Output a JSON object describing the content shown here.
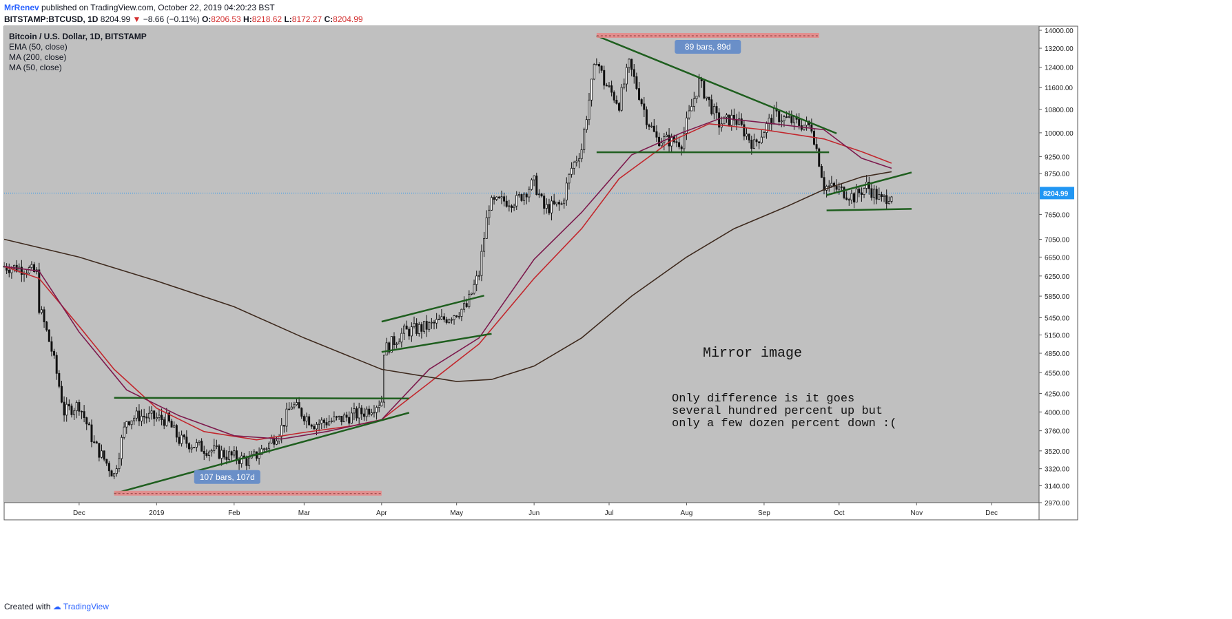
{
  "header": {
    "author": "MrRenev",
    "published": "published on TradingView.com, October 22, 2019 04:20:23 BST",
    "symbol": "BITSTAMP:BTCUSD, 1D",
    "last": "8204.99",
    "change_arrow": "▼",
    "change": "−8.66 (−0.11%)",
    "o_label": "O:",
    "o_value": "8206.53",
    "h_label": "H:",
    "h_value": "8218.62",
    "l_label": "L:",
    "l_value": "8172.27",
    "c_label": "C:",
    "c_value": "8204.99"
  },
  "legend": {
    "title": "Bitcoin / U.S. Dollar, 1D, BITSTAMP",
    "items": [
      "EMA (50, close)",
      "MA (200, close)",
      "MA (50, close)"
    ]
  },
  "footer": {
    "created_with": "Created with",
    "brand": "TradingView"
  },
  "colors": {
    "panel": "#c0c0c0",
    "ema50": "#c2272d",
    "ma200": "#3e2a1e",
    "ma50": "#7d1a4d",
    "trendline": "#1e5e1e",
    "candle": "#111111",
    "range_box": "#e58a8a",
    "range_label": "#6a8fc8",
    "price_tag": "#2196f3"
  },
  "chart_data": {
    "type": "candlestick",
    "ylim": [
      2970,
      14000
    ],
    "y_ticks": [
      14000,
      13200,
      12400,
      11600,
      10800,
      10000,
      9250,
      8750,
      7650,
      7050,
      6650,
      6250,
      5850,
      5450,
      5150,
      4850,
      4550,
      4250,
      4000,
      3760,
      3520,
      3320,
      3140,
      2970
    ],
    "y_tick_labels": [
      "14000.00",
      "13200.00",
      "12400.00",
      "11600.00",
      "10800.00",
      "10000.00",
      "9250.00",
      "8750.00",
      "7650.00",
      "7050.00",
      "6650.00",
      "6250.00",
      "5850.00",
      "5450.00",
      "5150.00",
      "4850.00",
      "4550.00",
      "4250.00",
      "4000.00",
      "3760.00",
      "3520.00",
      "3320.00",
      "3140.00",
      "2970.00"
    ],
    "x_ticks": [
      "Dec",
      "2019",
      "Feb",
      "Mar",
      "Apr",
      "May",
      "Jun",
      "Jul",
      "Aug",
      "Sep",
      "Oct",
      "Nov",
      "Dec"
    ],
    "last_price": 8204.99,
    "last_price_label": "8204.99",
    "price_path": [
      [
        "2018-11-01",
        6450
      ],
      [
        "2018-11-10",
        6400
      ],
      [
        "2018-11-14",
        6300
      ],
      [
        "2018-11-15",
        5650
      ],
      [
        "2018-11-20",
        4900
      ],
      [
        "2018-11-25",
        4000
      ],
      [
        "2018-12-01",
        4100
      ],
      [
        "2018-12-07",
        3600
      ],
      [
        "2018-12-15",
        3250
      ],
      [
        "2018-12-20",
        3900
      ],
      [
        "2018-12-25",
        3950
      ],
      [
        "2019-01-05",
        3900
      ],
      [
        "2019-01-10",
        3650
      ],
      [
        "2019-01-20",
        3550
      ],
      [
        "2019-02-01",
        3450
      ],
      [
        "2019-02-07",
        3400
      ],
      [
        "2019-02-15",
        3600
      ],
      [
        "2019-02-20",
        3800
      ],
      [
        "2019-02-24",
        4100
      ],
      [
        "2019-03-05",
        3850
      ],
      [
        "2019-03-15",
        3900
      ],
      [
        "2019-03-25",
        4000
      ],
      [
        "2019-04-01",
        4150
      ],
      [
        "2019-04-02",
        4900
      ],
      [
        "2019-04-10",
        5200
      ],
      [
        "2019-04-20",
        5300
      ],
      [
        "2019-04-25",
        5400
      ],
      [
        "2019-05-05",
        5650
      ],
      [
        "2019-05-10",
        6300
      ],
      [
        "2019-05-14",
        7900
      ],
      [
        "2019-05-20",
        8000
      ],
      [
        "2019-05-25",
        8000
      ],
      [
        "2019-06-01",
        8500
      ],
      [
        "2019-06-05",
        7800
      ],
      [
        "2019-06-12",
        7900
      ],
      [
        "2019-06-16",
        8900
      ],
      [
        "2019-06-20",
        9500
      ],
      [
        "2019-06-26",
        12800
      ],
      [
        "2019-06-29",
        11800
      ],
      [
        "2019-07-05",
        11000
      ],
      [
        "2019-07-09",
        12500
      ],
      [
        "2019-07-16",
        10500
      ],
      [
        "2019-07-20",
        9800
      ],
      [
        "2019-07-30",
        9700
      ],
      [
        "2019-08-06",
        11800
      ],
      [
        "2019-08-14",
        10300
      ],
      [
        "2019-08-20",
        10500
      ],
      [
        "2019-08-28",
        9600
      ],
      [
        "2019-09-05",
        10600
      ],
      [
        "2019-09-15",
        10300
      ],
      [
        "2019-09-20",
        10200
      ],
      [
        "2019-09-25",
        8400
      ],
      [
        "2019-10-01",
        8300
      ],
      [
        "2019-10-07",
        8100
      ],
      [
        "2019-10-12",
        8400
      ],
      [
        "2019-10-18",
        8000
      ],
      [
        "2019-10-22",
        8205
      ]
    ],
    "series": [
      {
        "name": "EMA (50, close)",
        "points": [
          [
            "2018-11-01",
            6450
          ],
          [
            "2018-11-15",
            6200
          ],
          [
            "2018-12-01",
            5300
          ],
          [
            "2018-12-15",
            4600
          ],
          [
            "2019-01-01",
            4050
          ],
          [
            "2019-01-20",
            3750
          ],
          [
            "2019-02-10",
            3650
          ],
          [
            "2019-03-01",
            3740
          ],
          [
            "2019-03-20",
            3820
          ],
          [
            "2019-04-01",
            3900
          ],
          [
            "2019-04-20",
            4400
          ],
          [
            "2019-05-10",
            5000
          ],
          [
            "2019-06-01",
            6200
          ],
          [
            "2019-06-20",
            7300
          ],
          [
            "2019-07-05",
            8600
          ],
          [
            "2019-07-25",
            9700
          ],
          [
            "2019-08-10",
            10300
          ],
          [
            "2019-09-01",
            10100
          ],
          [
            "2019-09-25",
            9800
          ],
          [
            "2019-10-10",
            9400
          ],
          [
            "2019-10-22",
            9050
          ]
        ]
      },
      {
        "name": "MA (50, close)",
        "points": [
          [
            "2018-11-01",
            6450
          ],
          [
            "2018-11-15",
            6350
          ],
          [
            "2018-12-01",
            5200
          ],
          [
            "2018-12-20",
            4300
          ],
          [
            "2019-01-10",
            3950
          ],
          [
            "2019-02-01",
            3700
          ],
          [
            "2019-02-20",
            3660
          ],
          [
            "2019-03-10",
            3750
          ],
          [
            "2019-04-01",
            3900
          ],
          [
            "2019-04-20",
            4600
          ],
          [
            "2019-05-10",
            5100
          ],
          [
            "2019-06-01",
            6600
          ],
          [
            "2019-06-20",
            7700
          ],
          [
            "2019-07-10",
            9300
          ],
          [
            "2019-07-30",
            10000
          ],
          [
            "2019-08-15",
            10500
          ],
          [
            "2019-09-05",
            10300
          ],
          [
            "2019-09-25",
            10100
          ],
          [
            "2019-10-10",
            9200
          ],
          [
            "2019-10-22",
            8900
          ]
        ]
      },
      {
        "name": "MA (200, close)",
        "points": [
          [
            "2018-11-01",
            7050
          ],
          [
            "2018-12-01",
            6650
          ],
          [
            "2019-01-01",
            6150
          ],
          [
            "2019-02-01",
            5650
          ],
          [
            "2019-03-01",
            5100
          ],
          [
            "2019-04-01",
            4600
          ],
          [
            "2019-05-01",
            4420
          ],
          [
            "2019-05-15",
            4450
          ],
          [
            "2019-06-01",
            4650
          ],
          [
            "2019-06-20",
            5100
          ],
          [
            "2019-07-10",
            5850
          ],
          [
            "2019-08-01",
            6650
          ],
          [
            "2019-08-20",
            7300
          ],
          [
            "2019-09-10",
            7850
          ],
          [
            "2019-09-25",
            8300
          ],
          [
            "2019-10-10",
            8650
          ],
          [
            "2019-10-22",
            8800
          ]
        ]
      }
    ],
    "trendlines": [
      [
        [
          "2018-12-15",
          3060
        ],
        [
          "2019-04-12",
          3990
        ]
      ],
      [
        [
          "2018-12-15",
          4190
        ],
        [
          "2019-04-12",
          4180
        ]
      ],
      [
        [
          "2019-04-01",
          4870
        ],
        [
          "2019-05-15",
          5170
        ]
      ],
      [
        [
          "2019-04-01",
          5380
        ],
        [
          "2019-05-12",
          5860
        ]
      ],
      [
        [
          "2019-06-26",
          13750
        ],
        [
          "2019-09-30",
          9980
        ]
      ],
      [
        [
          "2019-06-26",
          9380
        ],
        [
          "2019-09-27",
          9380
        ]
      ],
      [
        [
          "2019-09-26",
          8150
        ],
        [
          "2019-10-30",
          8780
        ]
      ],
      [
        [
          "2019-09-26",
          7750
        ],
        [
          "2019-10-30",
          7790
        ]
      ]
    ],
    "ranges": [
      {
        "from": "2018-12-15",
        "to": "2019-04-01",
        "value": 3060,
        "label": "107 bars, 107d"
      },
      {
        "from": "2019-06-26",
        "to": "2019-09-23",
        "value": 13750,
        "label": "89 bars, 89d"
      }
    ],
    "annotations": {
      "title": "Mirror image",
      "body": [
        "Only difference is it goes",
        "several hundred percent up but",
        "only a few dozen percent down :("
      ]
    }
  }
}
